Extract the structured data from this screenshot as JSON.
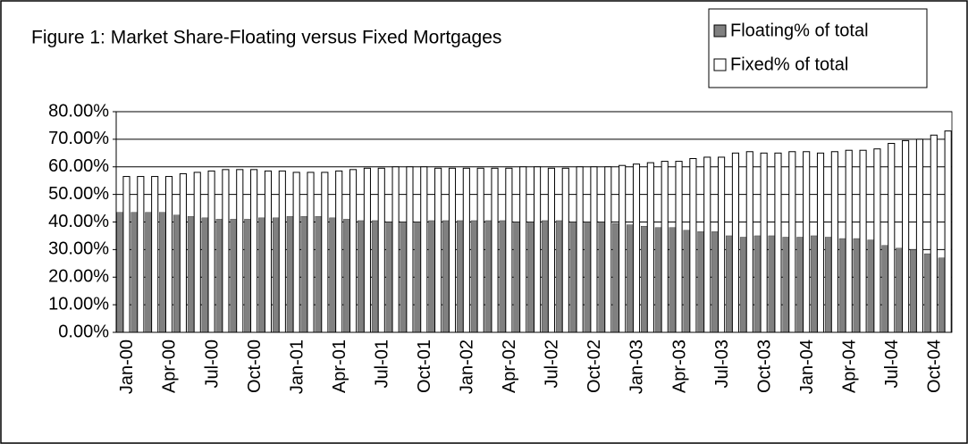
{
  "chart_data": {
    "type": "bar",
    "title": "Figure 1: Market Share-Floating versus Fixed Mortgages",
    "categories": [
      "Jan-00",
      null,
      null,
      "Apr-00",
      null,
      null,
      "Jul-00",
      null,
      null,
      "Oct-00",
      null,
      null,
      "Jan-01",
      null,
      null,
      "Apr-01",
      null,
      null,
      "Jul-01",
      null,
      null,
      "Oct-01",
      null,
      null,
      "Jan-02",
      null,
      null,
      "Apr-02",
      null,
      null,
      "Jul-02",
      null,
      null,
      "Oct-02",
      null,
      null,
      "Jan-03",
      null,
      null,
      "Apr-03",
      null,
      null,
      "Jul-03",
      null,
      null,
      "Oct-03",
      null,
      null,
      "Jan-04",
      null,
      null,
      "Apr-04",
      null,
      null,
      "Jul-04",
      null,
      null,
      "Oct-04",
      null
    ],
    "series": [
      {
        "name": "Floating% of total",
        "color": "#808080",
        "values": [
          43.5,
          43.5,
          43.5,
          43.5,
          42.5,
          42,
          41.5,
          41,
          41,
          41,
          41.5,
          41.5,
          42,
          42,
          42,
          41.5,
          41,
          40.5,
          40.5,
          40,
          40,
          40,
          40.5,
          40.5,
          40.5,
          40.5,
          40.5,
          40.5,
          40,
          40,
          40.5,
          40.5,
          40,
          40,
          40,
          39.5,
          39,
          38.5,
          38,
          38,
          37,
          36.5,
          36.5,
          35,
          34.5,
          35,
          35,
          34.5,
          34.5,
          35,
          34.5,
          34,
          34,
          33.5,
          31.5,
          30.5,
          30,
          28.5,
          27
        ]
      },
      {
        "name": "Fixed% of total",
        "color": "#ffffff",
        "values": [
          56.5,
          56.5,
          56.5,
          56.5,
          57.5,
          58,
          58.5,
          59,
          59,
          59,
          58.5,
          58.5,
          58,
          58,
          58,
          58.5,
          59,
          59.5,
          59.5,
          60,
          60,
          60,
          59.5,
          59.5,
          59.5,
          59.5,
          59.5,
          59.5,
          60,
          60,
          59.5,
          59.5,
          60,
          60,
          60,
          60.5,
          61,
          61.5,
          62,
          62,
          63,
          63.5,
          63.5,
          65,
          65.5,
          65,
          65,
          65.5,
          65.5,
          65,
          65.5,
          66,
          66,
          66.5,
          68.5,
          69.5,
          70,
          71.5,
          73
        ]
      }
    ],
    "ylim": [
      0,
      80
    ],
    "yticks": [
      {
        "value": 0,
        "label": "0.00%"
      },
      {
        "value": 10,
        "label": "10.00%"
      },
      {
        "value": 20,
        "label": "20.00%"
      },
      {
        "value": 30,
        "label": "30.00%"
      },
      {
        "value": 40,
        "label": "40.00%"
      },
      {
        "value": 50,
        "label": "50.00%"
      },
      {
        "value": 60,
        "label": "60.00%"
      },
      {
        "value": 70,
        "label": "70.00%"
      },
      {
        "value": 80,
        "label": "80.00%"
      }
    ],
    "grid": true,
    "legend": "top-right"
  }
}
